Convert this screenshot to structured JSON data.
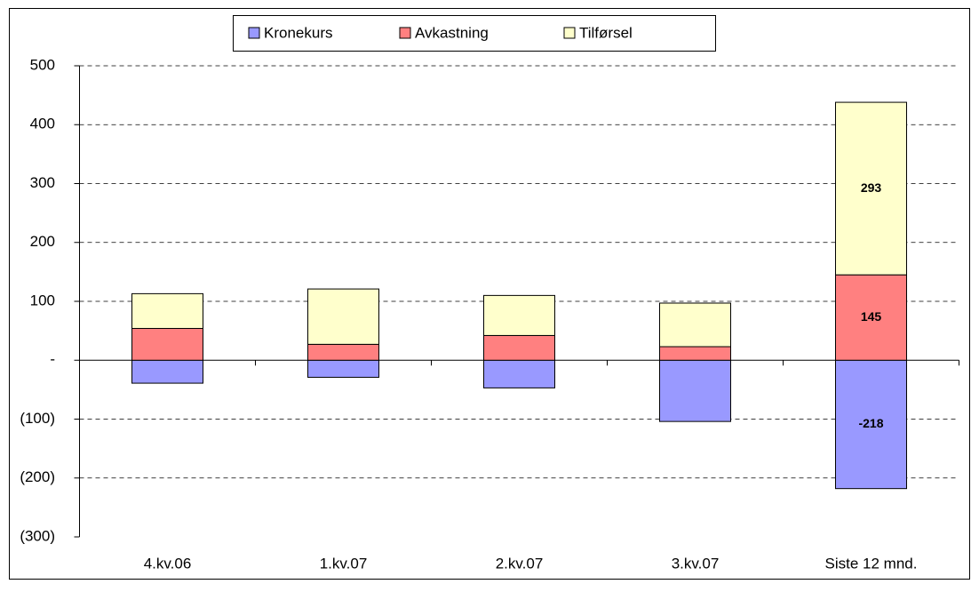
{
  "chart_data": {
    "type": "stacked_bar",
    "categories": [
      "4.kv.06",
      "1.kv.07",
      "2.kv.07",
      "3.kv.07",
      "Siste 12 mnd."
    ],
    "series": [
      {
        "name": "Kronekurs",
        "color": "#9999ff",
        "values": [
          -39,
          -29,
          -47,
          -104,
          -218
        ],
        "value_labels": [
          null,
          null,
          null,
          null,
          "-218"
        ]
      },
      {
        "name": "Avkastning",
        "color": "#ff8080",
        "values": [
          54,
          27,
          42,
          23,
          145
        ],
        "value_labels": [
          null,
          null,
          null,
          null,
          "145"
        ]
      },
      {
        "name": "Tilførsel",
        "color": "#ffffcc",
        "values": [
          59,
          94,
          68,
          74,
          293
        ],
        "value_labels": [
          null,
          null,
          null,
          null,
          "293"
        ]
      }
    ],
    "ylim": [
      -300,
      500
    ],
    "yticks": [
      500,
      400,
      300,
      200,
      100,
      {
        "value": 0,
        "label": "-"
      },
      {
        "value": -100,
        "label": "(100)"
      },
      {
        "value": -200,
        "label": "(200)"
      },
      {
        "value": -300,
        "label": "(300)"
      }
    ],
    "grid": true,
    "legend": "top"
  }
}
